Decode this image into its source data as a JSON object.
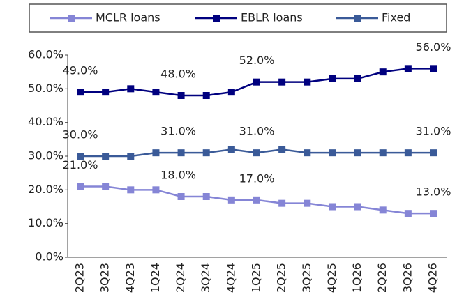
{
  "chart_data": {
    "type": "line",
    "categories": [
      "2Q23",
      "3Q23",
      "4Q23",
      "1Q24",
      "2Q24",
      "3Q24",
      "4Q24",
      "1Q25",
      "2Q25",
      "3Q25",
      "4Q25",
      "1Q26",
      "2Q26",
      "3Q26",
      "4Q26"
    ],
    "series": [
      {
        "name": "MCLR loans",
        "color": "#8585d6",
        "values": [
          21,
          21,
          20,
          20,
          18,
          18,
          17,
          17,
          16,
          16,
          15,
          15,
          14,
          13,
          13
        ],
        "value_labels": [
          "21.0%",
          null,
          null,
          null,
          "18.0%",
          null,
          null,
          "17.0%",
          null,
          null,
          null,
          null,
          null,
          null,
          "13.0%"
        ]
      },
      {
        "name": "EBLR loans",
        "color": "#00007f",
        "values": [
          49,
          49,
          50,
          49,
          48,
          48,
          49,
          52,
          52,
          52,
          53,
          53,
          55,
          56,
          56
        ],
        "value_labels": [
          "49.0%",
          null,
          null,
          null,
          "48.0%",
          null,
          null,
          "52.0%",
          null,
          null,
          null,
          null,
          null,
          null,
          "56.0%"
        ]
      },
      {
        "name": "Fixed",
        "color": "#3a5a98",
        "values": [
          30,
          30,
          30,
          31,
          31,
          31,
          32,
          31,
          32,
          31,
          31,
          31,
          31,
          31,
          31
        ],
        "value_labels": [
          "30.0%",
          null,
          null,
          null,
          "31.0%",
          null,
          null,
          "31.0%",
          null,
          null,
          null,
          null,
          null,
          null,
          "31.0%"
        ]
      }
    ],
    "ylim": [
      0,
      60
    ],
    "yticks": [
      {
        "value": 0,
        "label": "0.0%"
      },
      {
        "value": 10,
        "label": "10.0%"
      },
      {
        "value": 20,
        "label": "20.0%"
      },
      {
        "value": 30,
        "label": "30.0%"
      },
      {
        "value": 40,
        "label": "40.0%"
      },
      {
        "value": 50,
        "label": "50.0%"
      },
      {
        "value": 60,
        "label": "60.0%"
      }
    ],
    "legend": "top"
  }
}
